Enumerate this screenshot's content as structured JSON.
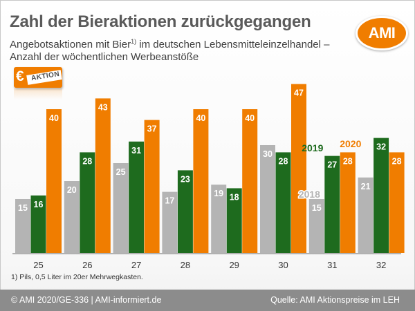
{
  "header": {
    "title": "Zahl der Bieraktionen zurückgegangen",
    "subtitle_line1_a": "Angebotsaktionen mit Bier",
    "subtitle_footnote_mark": "1)",
    "subtitle_line1_b": " im deutschen Lebensmitteleinzelhandel –",
    "subtitle_line2": "Anzahl der wöchentlichen Werbeanstöße"
  },
  "logo": {
    "text": "AMI",
    "color": "#f07d00"
  },
  "tag": {
    "symbol": "€",
    "text": "AKTION"
  },
  "footnote": "1) Pils, 0,5 Liter im 20er Mehrwegkasten.",
  "footer": {
    "left": "© AMI 2020/GE-336 | AMI-informiert.de",
    "right": "Quelle: AMI Aktionspreise im LEH"
  },
  "chart_data": {
    "type": "bar",
    "categories": [
      "25",
      "26",
      "27",
      "28",
      "29",
      "30",
      "31",
      "32"
    ],
    "series": [
      {
        "name": "2018",
        "color": "#b4b4b4",
        "values": [
          15,
          20,
          25,
          17,
          19,
          30,
          15,
          21
        ]
      },
      {
        "name": "2019",
        "color": "#1e6b1e",
        "values": [
          16,
          28,
          31,
          23,
          18,
          28,
          27,
          32
        ]
      },
      {
        "name": "2020",
        "color": "#f07d00",
        "values": [
          40,
          43,
          37,
          40,
          40,
          47,
          28,
          28
        ]
      }
    ],
    "grid": false,
    "legend": "inline labels above category 31"
  }
}
